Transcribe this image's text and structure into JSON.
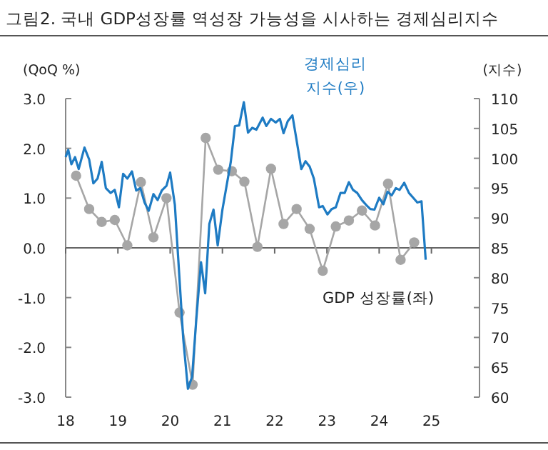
{
  "chart_data": {
    "type": "line",
    "title": "그림2.  국내 GDP성장률 역성장 가능성을 시사하는 경제심리지수",
    "ylabel": "(QoQ %)",
    "y2label": "(지수)",
    "xlim": [
      2018,
      2025.92
    ],
    "xticks": [
      {
        "value": 2018,
        "label": "18"
      },
      {
        "value": 2019,
        "label": "19"
      },
      {
        "value": 2020,
        "label": "20"
      },
      {
        "value": 2021,
        "label": "21"
      },
      {
        "value": 2022,
        "label": "22"
      },
      {
        "value": 2023,
        "label": "23"
      },
      {
        "value": 2024,
        "label": "24"
      },
      {
        "value": 2025,
        "label": "25"
      }
    ],
    "ylim": [
      -3,
      3
    ],
    "yticks": [
      {
        "value": 3,
        "label": "3.0"
      },
      {
        "value": 2,
        "label": "2.0"
      },
      {
        "value": 1,
        "label": "1.0"
      },
      {
        "value": 0,
        "label": "0.0"
      },
      {
        "value": -1,
        "label": "-1.0"
      },
      {
        "value": -2,
        "label": "-2.0"
      },
      {
        "value": -3,
        "label": "-3.0"
      }
    ],
    "y2lim": [
      60,
      110
    ],
    "y2ticks": [
      110,
      105,
      100,
      95,
      90,
      85,
      80,
      75,
      70,
      65,
      60
    ],
    "series": [
      {
        "name": "GDP 성장률(좌)",
        "marker": "circle",
        "color": "#a6a6a6",
        "x": [
          2018.2,
          2018.45,
          2018.69,
          2018.94,
          2019.18,
          2019.44,
          2019.68,
          2019.93,
          2020.18,
          2020.43,
          2020.68,
          2020.92,
          2021.18,
          2021.42,
          2021.67,
          2021.93,
          2022.17,
          2022.42,
          2022.67,
          2022.92,
          2023.17,
          2023.42,
          2023.67,
          2023.92,
          2024.17,
          2024.41,
          2024.67
        ],
        "values": [
          1.45,
          0.78,
          0.52,
          0.56,
          0.05,
          1.32,
          0.21,
          1.0,
          -1.3,
          -2.75,
          2.21,
          1.57,
          1.54,
          1.33,
          0.02,
          1.59,
          0.48,
          0.78,
          0.38,
          -0.46,
          0.43,
          0.55,
          0.75,
          0.45,
          1.29,
          -0.24,
          0.11
        ]
      },
      {
        "name": "경제심리\n지수(우)",
        "marker": "none",
        "axis": "y2",
        "color": "#1e7bc3",
        "x": [
          2018.0,
          2018.05,
          2018.11,
          2018.18,
          2018.25,
          2018.36,
          2018.45,
          2018.53,
          2018.61,
          2018.69,
          2018.77,
          2018.86,
          2018.94,
          2019.02,
          2019.1,
          2019.18,
          2019.27,
          2019.35,
          2019.43,
          2019.51,
          2019.59,
          2019.68,
          2019.76,
          2019.84,
          2019.93,
          2020.0,
          2020.09,
          2020.17,
          2020.25,
          2020.34,
          2020.42,
          2020.5,
          2020.59,
          2020.67,
          2020.75,
          2020.83,
          2020.91,
          2021.0,
          2021.08,
          2021.16,
          2021.24,
          2021.32,
          2021.41,
          2021.49,
          2021.57,
          2021.65,
          2021.77,
          2021.84,
          2021.93,
          2022.02,
          2022.1,
          2022.17,
          2022.25,
          2022.34,
          2022.42,
          2022.51,
          2022.59,
          2022.67,
          2022.75,
          2022.85,
          2022.92,
          2023.01,
          2023.09,
          2023.17,
          2023.26,
          2023.34,
          2023.42,
          2023.5,
          2023.58,
          2023.67,
          2023.75,
          2023.83,
          2023.91,
          2024.0,
          2024.08,
          2024.16,
          2024.24,
          2024.32,
          2024.39,
          2024.48,
          2024.57,
          2024.65,
          2024.73,
          2024.81,
          2024.89
        ],
        "values": [
          100.2,
          101.4,
          99,
          100.2,
          98.2,
          101.8,
          99.8,
          95.8,
          96.6,
          99.4,
          95,
          94.2,
          94.7,
          91.8,
          97.4,
          96.6,
          97.8,
          94.6,
          95,
          92.6,
          91.2,
          94,
          93,
          94.6,
          95.4,
          97.6,
          92.2,
          81,
          69.8,
          61.4,
          63.4,
          73,
          82.6,
          77.4,
          89,
          91.4,
          85.4,
          91.4,
          95.4,
          99.4,
          105.4,
          105.5,
          109.4,
          104.3,
          105.1,
          104.8,
          106.8,
          105.4,
          106.6,
          106,
          106.6,
          104.2,
          106.2,
          107.2,
          103,
          98.2,
          99.5,
          98.6,
          96.6,
          91.8,
          92,
          90.6,
          91.5,
          91.8,
          94.2,
          94.2,
          96,
          94.7,
          94.2,
          93,
          92.2,
          91.5,
          91.4,
          93.4,
          92.3,
          94.4,
          93.8,
          95,
          94.7,
          95.9,
          94.2,
          93.4,
          92.6,
          92.8,
          83
        ]
      }
    ]
  }
}
